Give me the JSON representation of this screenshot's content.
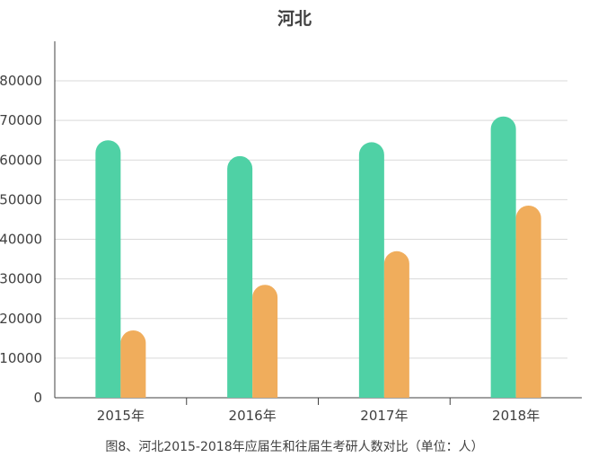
{
  "chart_data": {
    "type": "bar",
    "title": "河北",
    "caption": "图8、河北2015-2018年应届生和往届生考研人数对比（单位：人）",
    "categories": [
      "2015年",
      "2016年",
      "2017年",
      "2018年"
    ],
    "series": [
      {
        "values": [
          65000,
          61000,
          64500,
          71000
        ],
        "color": "#4fd1a5"
      },
      {
        "values": [
          17000,
          28500,
          37000,
          48500
        ],
        "color": "#f0ad5c"
      }
    ],
    "ylim": [
      0,
      80000
    ],
    "yticks": [
      0,
      10000,
      20000,
      30000,
      40000,
      50000,
      60000,
      70000,
      80000
    ],
    "grid": true,
    "legend": "none"
  }
}
